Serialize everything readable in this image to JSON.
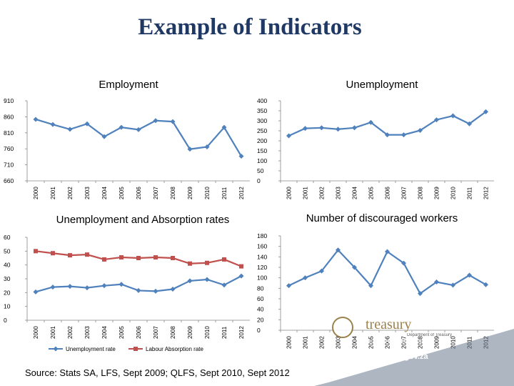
{
  "title": "Example of Indicators",
  "source": "Source: Stats SA, LFS, Sept 2009; QLFS, Sept 2010, Sept 2012",
  "logo": {
    "text": "treasury",
    "subtext": "Department of Treasury",
    "province": "FREE STATE PROVINCE",
    "url": "www.fs.gov.za"
  },
  "colors": {
    "line_blue": "#4f81bd",
    "line_red": "#c0504d",
    "title": "#1f3864"
  },
  "chart_data": [
    {
      "type": "line",
      "title": "Employment",
      "categories": [
        "2000",
        "2001",
        "2002",
        "2003",
        "2004",
        "2005",
        "2006",
        "2007",
        "2008",
        "2009",
        "2010",
        "2011",
        "2012"
      ],
      "series": [
        {
          "values": [
            852,
            836,
            821,
            838,
            798,
            827,
            820,
            848,
            845,
            759,
            766,
            827,
            737
          ]
        }
      ],
      "ylim": [
        660,
        910
      ],
      "yticks": [
        910,
        860,
        810,
        760,
        710,
        660
      ],
      "grid": false
    },
    {
      "type": "line",
      "title": "Unemployment",
      "categories": [
        "2000",
        "2001",
        "2002",
        "2003",
        "2004",
        "2005",
        "2006",
        "2007",
        "2008",
        "2009",
        "2010",
        "2011",
        "2012"
      ],
      "series": [
        {
          "values": [
            225,
            262,
            265,
            258,
            265,
            292,
            230,
            230,
            252,
            305,
            325,
            285,
            345
          ]
        }
      ],
      "ylim": [
        0,
        400
      ],
      "yticks": [
        400,
        350,
        300,
        250,
        200,
        150,
        100,
        50,
        0
      ],
      "grid": false
    },
    {
      "type": "line",
      "title": "Unemployment and Absorption rates",
      "categories": [
        "2000",
        "2001",
        "2002",
        "2003",
        "2004",
        "2005",
        "2006",
        "2007",
        "2008",
        "2009",
        "2010",
        "2011",
        "2012"
      ],
      "series": [
        {
          "name": "Unemployment rate",
          "values": [
            20.5,
            24,
            24.5,
            23.5,
            25,
            26,
            21.5,
            21,
            22.5,
            28.5,
            29.5,
            25.5,
            32
          ]
        },
        {
          "name": "Labour Absorption rate",
          "values": [
            50,
            48.5,
            47,
            47.5,
            44,
            45.5,
            45,
            45.5,
            45,
            41,
            41.5,
            44,
            39
          ]
        }
      ],
      "ylim": [
        0,
        60
      ],
      "yticks": [
        60,
        50,
        40,
        30,
        20,
        10,
        0
      ],
      "legend": "bottom",
      "grid": false
    },
    {
      "type": "line",
      "title": "Number of discouraged workers",
      "categories": [
        "2000",
        "2001",
        "2002",
        "2003",
        "2004",
        "2005",
        "2006",
        "2007",
        "2008",
        "2009",
        "2010",
        "2011",
        "2012"
      ],
      "series": [
        {
          "values": [
            85,
            100,
            113,
            153,
            120,
            85,
            150,
            128,
            70,
            92,
            86,
            105,
            87
          ]
        }
      ],
      "ylim": [
        0,
        180
      ],
      "yticks": [
        180,
        160,
        140,
        120,
        100,
        80,
        60,
        40,
        20,
        0
      ],
      "grid": false
    }
  ]
}
